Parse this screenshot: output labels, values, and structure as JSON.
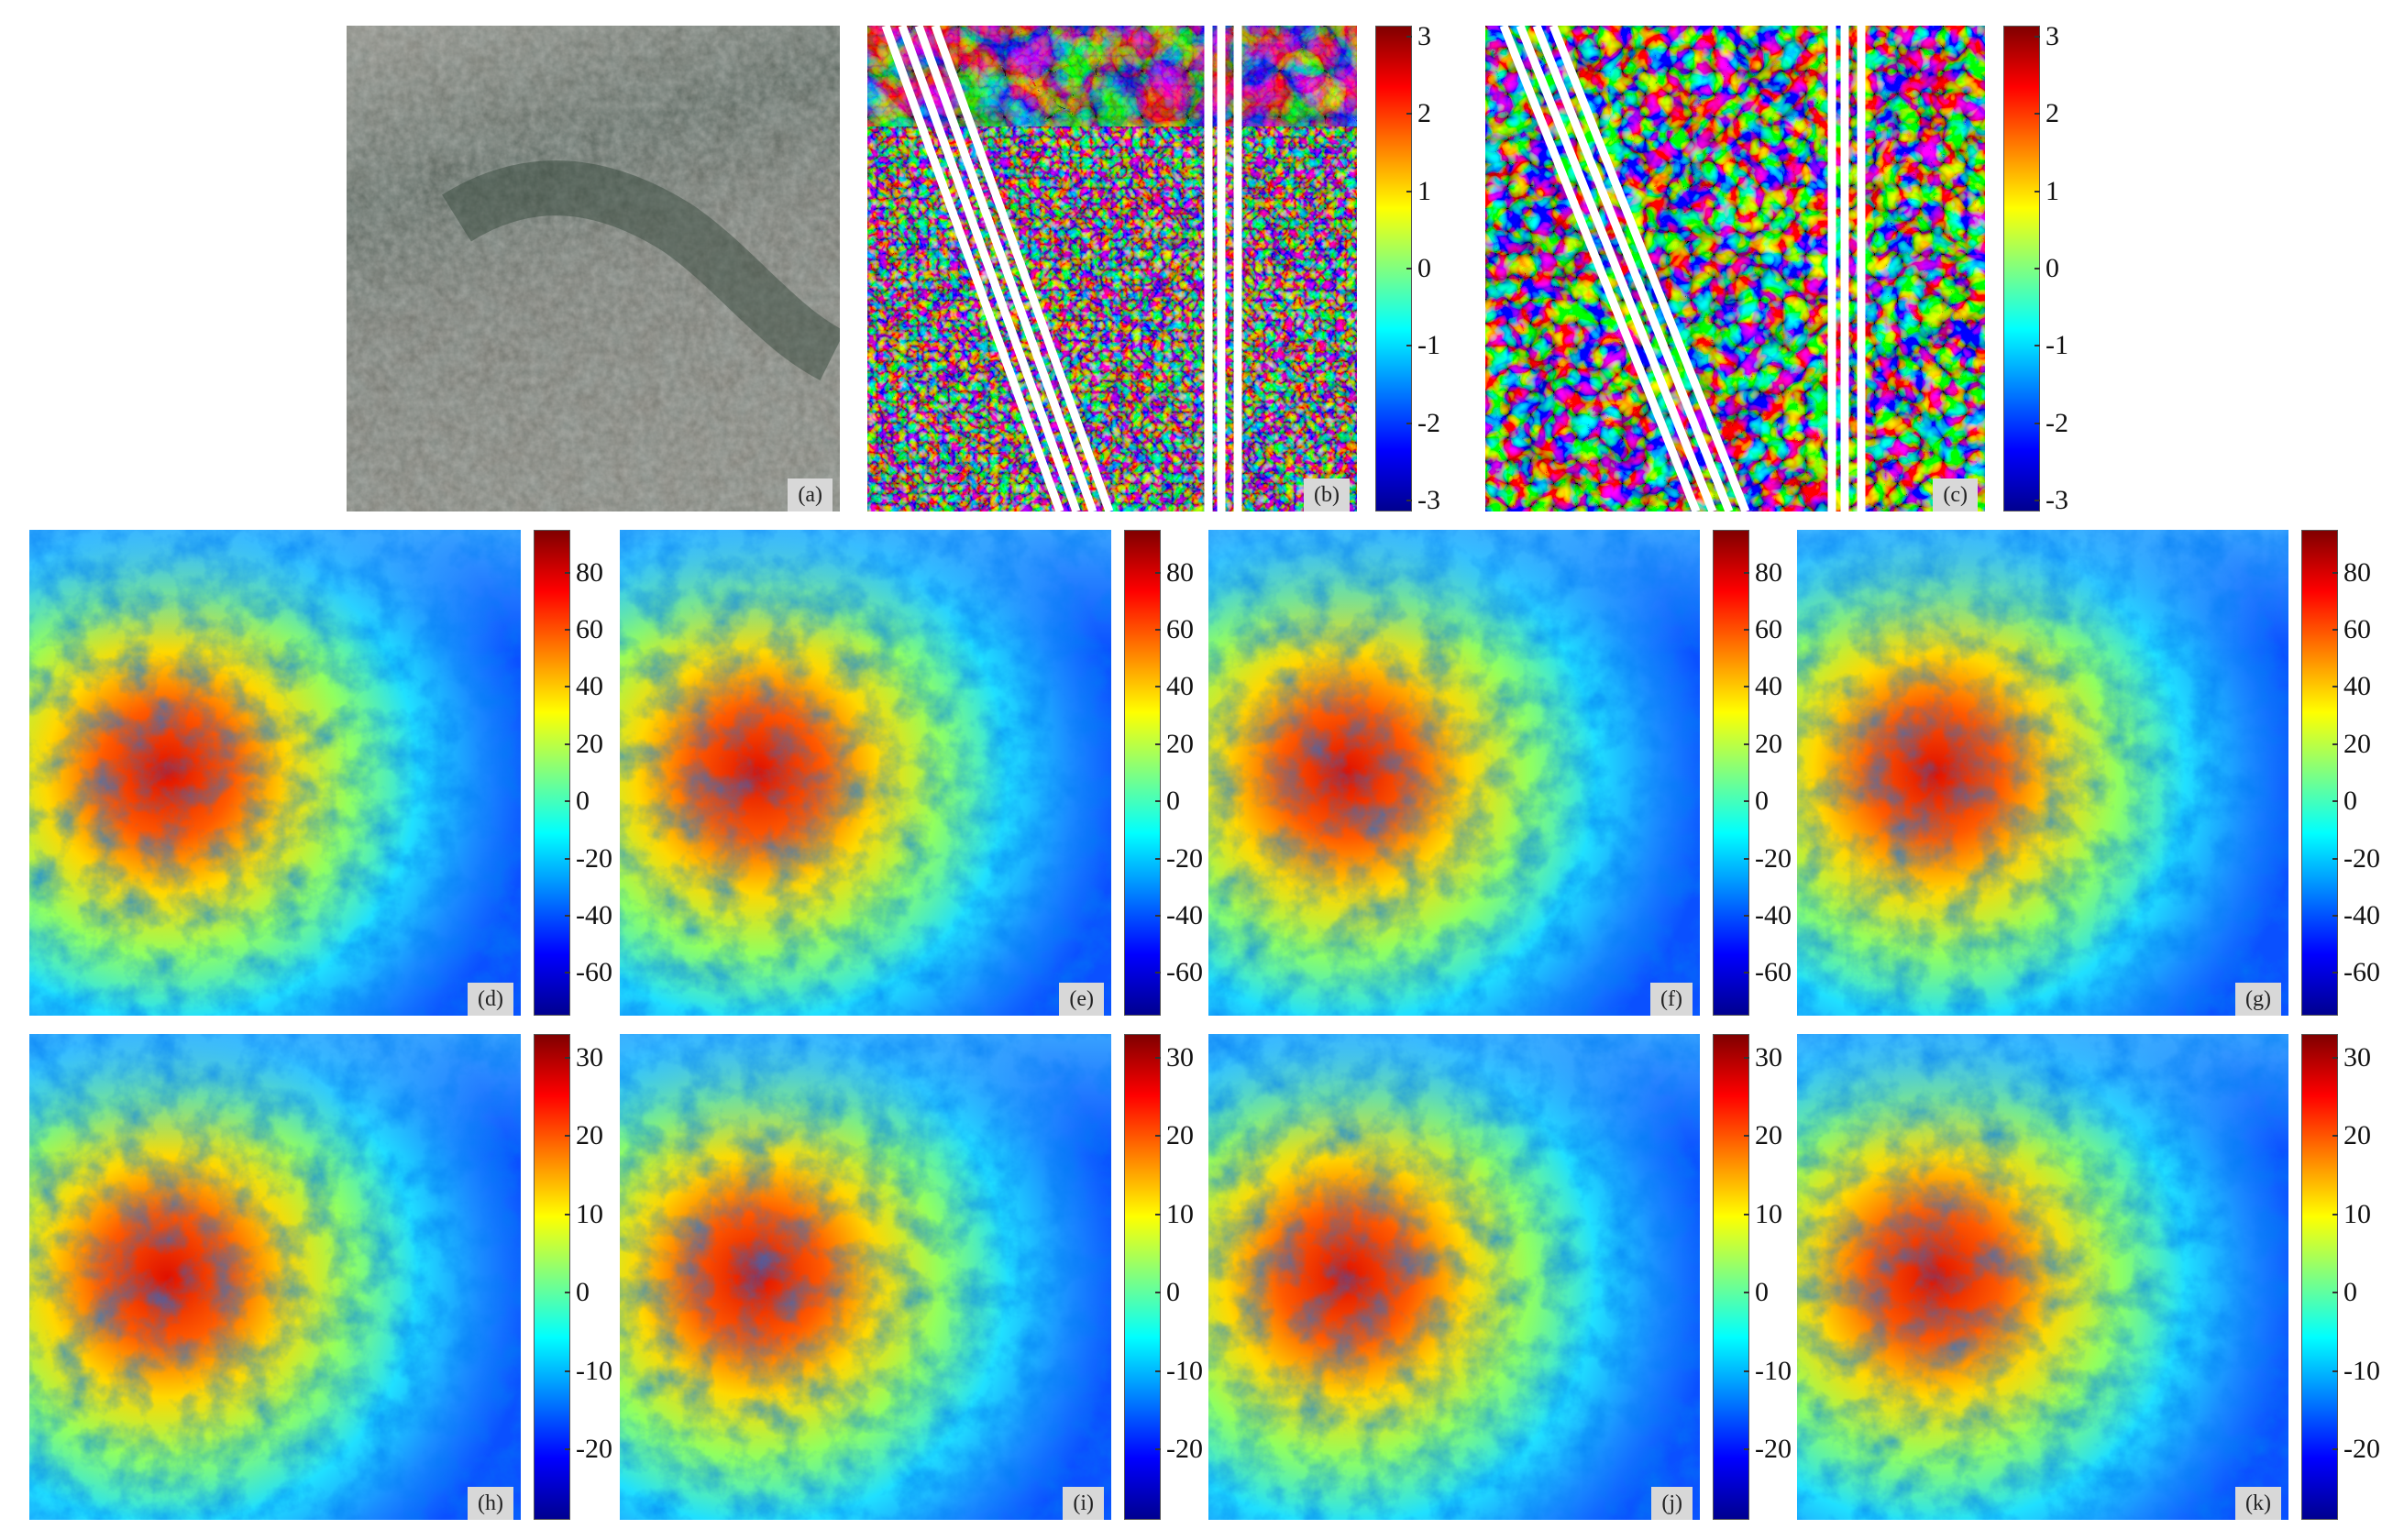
{
  "figure": {
    "panels": [
      {
        "id": "a",
        "label": "(a)",
        "kind": "optical"
      },
      {
        "id": "b",
        "label": "(b)",
        "kind": "phase-fine"
      },
      {
        "id": "c",
        "label": "(c)",
        "kind": "phase-coarse"
      },
      {
        "id": "d",
        "label": "(d)",
        "kind": "dem"
      },
      {
        "id": "e",
        "label": "(e)",
        "kind": "dem"
      },
      {
        "id": "f",
        "label": "(f)",
        "kind": "dem"
      },
      {
        "id": "g",
        "label": "(g)",
        "kind": "dem"
      },
      {
        "id": "h",
        "label": "(h)",
        "kind": "dem"
      },
      {
        "id": "i",
        "label": "(i)",
        "kind": "dem"
      },
      {
        "id": "j",
        "label": "(j)",
        "kind": "dem"
      },
      {
        "id": "k",
        "label": "(k)",
        "kind": "dem"
      }
    ],
    "colorbars": {
      "phase": {
        "ticks": [
          "3",
          "2",
          "1",
          "0",
          "-1",
          "-2",
          "-3"
        ],
        "min": -3.14,
        "max": 3.14
      },
      "height_row2": {
        "ticks": [
          "80",
          "60",
          "40",
          "20",
          "0",
          "-20",
          "-40",
          "-60"
        ],
        "min": -75,
        "max": 95
      },
      "height_row3": {
        "ticks": [
          "30",
          "20",
          "10",
          "0",
          "-10",
          "-20"
        ],
        "min": -29,
        "max": 33
      }
    },
    "colormap": [
      "#00008f",
      "#0000ff",
      "#0080ff",
      "#00ffff",
      "#80ff80",
      "#ffff00",
      "#ff8000",
      "#ff0000",
      "#800000"
    ]
  }
}
